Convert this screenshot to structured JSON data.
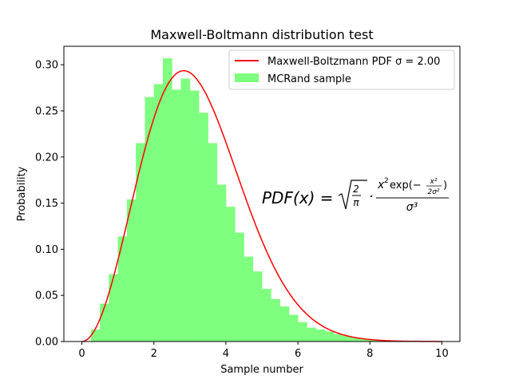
{
  "chart_data": {
    "type": "bar",
    "title": "Maxwell-Boltmann distribution test",
    "xlabel": "Sample number",
    "ylabel": "Probability",
    "xlim": [
      -0.5,
      10.5
    ],
    "ylim": [
      0,
      0.32
    ],
    "xticks": [
      0,
      2,
      4,
      6,
      8,
      10
    ],
    "yticks": [
      0.0,
      0.05,
      0.1,
      0.15,
      0.2,
      0.25,
      0.3
    ],
    "xtick_labels": [
      "0",
      "2",
      "4",
      "6",
      "8",
      "10"
    ],
    "ytick_labels": [
      "0.00",
      "0.05",
      "0.10",
      "0.15",
      "0.20",
      "0.25",
      "0.30"
    ],
    "grid": false,
    "legend_position": "top-right",
    "histogram": {
      "name": "MCRand sample",
      "color": "#7fff7f",
      "bin_width": 0.25,
      "bin_start": 0.25,
      "values": [
        0.013,
        0.041,
        0.073,
        0.114,
        0.154,
        0.215,
        0.265,
        0.279,
        0.307,
        0.273,
        0.285,
        0.272,
        0.248,
        0.215,
        0.17,
        0.146,
        0.118,
        0.092,
        0.076,
        0.057,
        0.046,
        0.038,
        0.029,
        0.021,
        0.015,
        0.013,
        0.011,
        0.008,
        0.006,
        0.004,
        0.003,
        0.002,
        0.001
      ]
    },
    "curve": {
      "name": "Maxwell-Boltzmann PDF σ = 2.00",
      "color": "#ff0000",
      "sigma": 2.0,
      "x_range": [
        0,
        10
      ]
    },
    "annotation": {
      "lhs": "PDF(x) =",
      "sqrt_num": "2",
      "sqrt_den": "π",
      "dot": "·",
      "num_x": "x",
      "num_exp": "exp(−",
      "inner_num": "x²",
      "inner_den": "2σ²",
      "close": ")",
      "den": "σ³"
    }
  }
}
